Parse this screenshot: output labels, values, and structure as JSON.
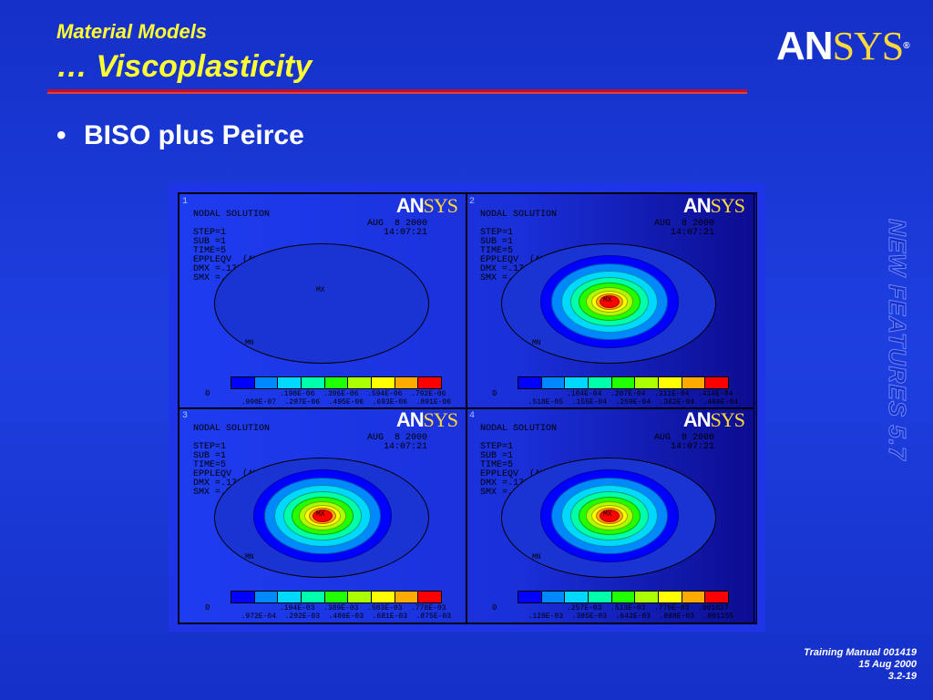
{
  "header": {
    "title_small": "Material Models",
    "title_large": "… Viscoplasticity"
  },
  "logo": {
    "an": "AN",
    "sys": "SYS",
    "reg": "®"
  },
  "bullet": {
    "marker": "•",
    "text": "BISO plus Peirce"
  },
  "side_banner": "NEW FEATURES 5.7",
  "footer": {
    "line1": "Training Manual 001419",
    "line2": "15 Aug 2000",
    "line3": "3.2-19"
  },
  "colors": {
    "accent_title": "#ffff33",
    "rule": "#c0102a",
    "background": "#1e3fe0"
  },
  "contour_colors": [
    "#0000ff",
    "#0088ff",
    "#00d8ff",
    "#00ffaa",
    "#22ff00",
    "#aaff00",
    "#ffff00",
    "#ffaa00",
    "#ff0000"
  ],
  "figure": {
    "quadrants": [
      {
        "num": "1",
        "logo_an": "AN",
        "logo_sys": "SYS",
        "text": "NODAL SOLUTION\n\nSTEP=1\nSUB =1\nTIME=5\nEPPLEQV  (AVG)\nDMX =.179289\nSMX =.891E-06",
        "date": "AUG  8 2000\n14:07:21",
        "mx": "MX",
        "mn": "MN",
        "zero": "0",
        "labels_top": "     .198E-06  .396E-06  .594E-06  .792E-06",
        "labels_bottom": "  .990E-07  .297E-06  .495E-06  .693E-06  .891E-06",
        "contour_levels": 0
      },
      {
        "num": "2",
        "logo_an": "AN",
        "logo_sys": "SYS",
        "text": "NODAL SOLUTION\n\nSTEP=1\nSUB =1\nTIME=5\nEPPLEQV  (AVG)\nDMX =.179289\nSMX =.466E-04",
        "date": "AUG  8 2000\n14:07:21",
        "mx": "MX",
        "mn": "MN",
        "zero": "0",
        "labels_top": "     .104E-04  .207E-04  .311E-04  .414E-04",
        "labels_bottom": "  .518E-05  .155E-04  .259E-04  .362E-04  .466E-04",
        "contour_levels": 9
      },
      {
        "num": "3",
        "logo_an": "AN",
        "logo_sys": "SYS",
        "text": "NODAL SOLUTION\n\nSTEP=1\nSUB =1\nTIME=5\nEPPLEQV  (AVG)\nDMX =.179289\nSMX =.875E-03",
        "date": "AUG  8 2000\n14:07:21",
        "mx": "MX",
        "mn": "MN",
        "zero": "0",
        "labels_top": "     .194E-03  .389E-03  .583E-03  .778E-03",
        "labels_bottom": "  .972E-04  .292E-03  .486E-03  .681E-03  .875E-03",
        "contour_levels": 9
      },
      {
        "num": "4",
        "logo_an": "AN",
        "logo_sys": "SYS",
        "text": "NODAL SOLUTION\n\nSTEP=1\nSUB =1\nTIME=5\nEPPLEQV  (AVG)\nDMX =.179289\nSMX =.001155",
        "date": "AUG  8 2000\n14:07:21",
        "mx": "MX",
        "mn": "MN",
        "zero": "0",
        "labels_top": "     .257E-03  .513E-03  .770E-03  .001027",
        "labels_bottom": "  .128E-03  .385E-03  .642E-03  .898E-03  .001155",
        "contour_levels": 9
      }
    ]
  }
}
